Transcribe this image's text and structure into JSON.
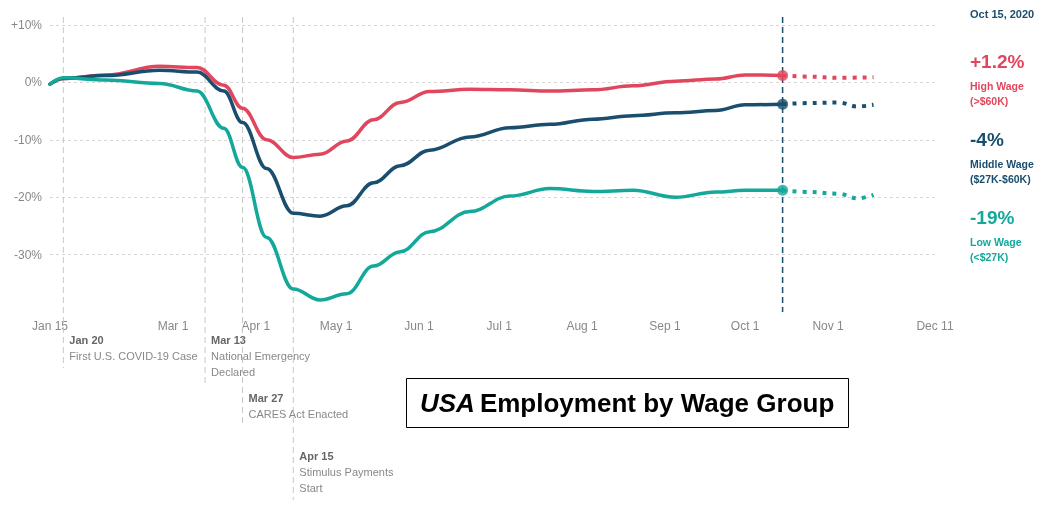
{
  "chart_data": {
    "type": "line",
    "title": "USA Employment by Wage Group",
    "xlim": [
      "2020-01-15",
      "2020-12-11"
    ],
    "xticks": [
      {
        "value": "2020-01-15",
        "label": "Jan 15"
      },
      {
        "value": "2020-03-01",
        "label": "Mar 1"
      },
      {
        "value": "2020-04-01",
        "label": "Apr 1"
      },
      {
        "value": "2020-05-01",
        "label": "May 1"
      },
      {
        "value": "2020-06-01",
        "label": "Jun 1"
      },
      {
        "value": "2020-07-01",
        "label": "Jul 1"
      },
      {
        "value": "2020-08-01",
        "label": "Aug 1"
      },
      {
        "value": "2020-09-01",
        "label": "Sep 1"
      },
      {
        "value": "2020-10-01",
        "label": "Oct 1"
      },
      {
        "value": "2020-11-01",
        "label": "Nov 1"
      },
      {
        "value": "2020-12-11",
        "label": "Dec 11"
      }
    ],
    "ylim": [
      -40,
      10
    ],
    "yticks": [
      {
        "value": -30,
        "label": "-30%"
      },
      {
        "value": -20,
        "label": "-20%"
      },
      {
        "value": -10,
        "label": "-10%"
      },
      {
        "value": 0,
        "label": "0%"
      },
      {
        "value": 10,
        "label": "+10%"
      }
    ],
    "grid": "y",
    "legend": false,
    "x": [
      "2020-01-15",
      "2020-01-20",
      "2020-02-05",
      "2020-02-25",
      "2020-03-10",
      "2020-03-20",
      "2020-03-27",
      "2020-04-05",
      "2020-04-15",
      "2020-04-25",
      "2020-05-05",
      "2020-05-15",
      "2020-05-25",
      "2020-06-05",
      "2020-06-20",
      "2020-07-05",
      "2020-07-20",
      "2020-08-05",
      "2020-08-20",
      "2020-09-05",
      "2020-09-20",
      "2020-10-01",
      "2020-10-15"
    ],
    "series": [
      {
        "name": "High Wage (>$60K)",
        "color": "#e0475e",
        "line_style": "solid",
        "values": [
          -0.3,
          0.7,
          1.3,
          2.8,
          2.6,
          -0.5,
          -4.5,
          -10,
          -13.1,
          -12.5,
          -10.2,
          -6.5,
          -3.5,
          -1.6,
          -1.2,
          -1.3,
          -1.5,
          -1.3,
          -0.6,
          0.2,
          0.6,
          1.3,
          1.2
        ]
      },
      {
        "color": "#e0475e",
        "line_style": "dotted",
        "marker": "none",
        "x": [
          "2020-10-15",
          "2020-10-25",
          "2020-11-05",
          "2020-11-18"
        ],
        "values": [
          1.2,
          1.0,
          0.8,
          0.9
        ]
      },
      {
        "name": "Middle Wage ($27K-$60K)",
        "color": "#1a4e6e",
        "line_style": "solid",
        "values": [
          -0.3,
          0.7,
          1.2,
          2.1,
          1.8,
          -1.5,
          -7,
          -15,
          -22.8,
          -23.3,
          -21.5,
          -17.5,
          -14.5,
          -11.8,
          -9.5,
          -7.9,
          -7.3,
          -6.4,
          -5.8,
          -5.3,
          -4.9,
          -3.9,
          -3.8
        ]
      },
      {
        "color": "#1a4e6e",
        "line_style": "dotted",
        "marker": "none",
        "x": [
          "2020-10-15",
          "2020-10-25",
          "2020-11-05",
          "2020-11-12",
          "2020-11-18"
        ],
        "values": [
          -3.8,
          -3.6,
          -3.5,
          -4.2,
          -3.9
        ]
      },
      {
        "name": "Low Wage (<$27K)",
        "color": "#14a89b",
        "line_style": "solid",
        "values": [
          -0.3,
          0.8,
          0.4,
          -0.2,
          -1.5,
          -8,
          -14.8,
          -27,
          -36,
          -37.9,
          -36.8,
          -32,
          -29.5,
          -26,
          -22.5,
          -19.8,
          -18.5,
          -19,
          -18.8,
          -20,
          -19.1,
          -18.8,
          -18.8
        ]
      },
      {
        "color": "#14a89b",
        "line_style": "dotted",
        "marker": "none",
        "x": [
          "2020-10-15",
          "2020-10-25",
          "2020-11-05",
          "2020-11-12",
          "2020-11-18"
        ],
        "values": [
          -18.8,
          -19.1,
          -19.4,
          -20.2,
          -19.6
        ]
      },
      {
        "type": "scatter",
        "marker": "circle",
        "x": [
          "2020-10-15",
          "2020-10-15",
          "2020-10-15"
        ],
        "values": [
          1.2,
          -3.8,
          -18.8
        ],
        "colors": [
          "#e0475e",
          "#1a4e6e",
          "#14a89b"
        ]
      }
    ],
    "ref_lines": [
      {
        "axis": "x",
        "value": "2020-01-20",
        "label": "Jan 20\nFirst U.S. COVID-19 Case",
        "color": "#c8c8c8",
        "line_style": "dashed"
      },
      {
        "axis": "x",
        "value": "2020-03-13",
        "label": "Mar 13\nNational Emergency\nDeclared",
        "color": "#c8c8c8",
        "line_style": "dashed"
      },
      {
        "axis": "x",
        "value": "2020-03-27",
        "label": "Mar 27\nCARES Act Enacted",
        "color": "#c8c8c8",
        "line_style": "dashed"
      },
      {
        "axis": "x",
        "value": "2020-04-15",
        "label": "Apr 15\nStimulus Payments\nStart",
        "color": "#c8c8c8",
        "line_style": "dashed"
      },
      {
        "axis": "x",
        "value": "2020-10-15",
        "color": "#1a4e6e",
        "line_style": "dashed"
      }
    ],
    "annotations": [
      "Oct 15, 2020",
      "+1.2%",
      "-4%",
      "-19%"
    ]
  }
}
